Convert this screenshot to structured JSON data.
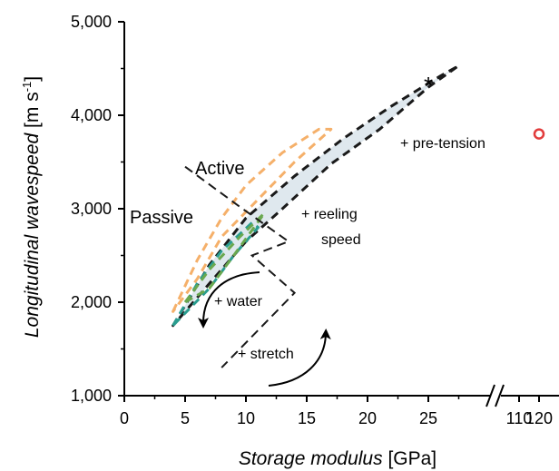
{
  "chart_data": {
    "type": "area",
    "xlabel_italic": "Storage modulus",
    "xlabel_unit": "[GPa]",
    "ylabel_italic": "Longitudinal wavespeed",
    "ylabel_unit": "[m s",
    "ylabel_exp": "-1",
    "ylabel_close": "]",
    "ylim": [
      1000,
      5000
    ],
    "x_ticks": [
      "0",
      "5",
      "10",
      "15",
      "20",
      "25"
    ],
    "x_ticks_break": [
      "110",
      "120"
    ],
    "y_ticks": [
      "1,000",
      "2,000",
      "3,000",
      "4,000",
      "5,000"
    ],
    "regions": [
      {
        "key": "main",
        "color": "#1a1a1a",
        "fill": "#dfe8ee",
        "points": [
          [
            4,
            1750
          ],
          [
            7,
            2400
          ],
          [
            10,
            2900
          ],
          [
            14,
            3350
          ],
          [
            18,
            3750
          ],
          [
            22,
            4100
          ],
          [
            26,
            4420
          ],
          [
            27.5,
            4530
          ],
          [
            25,
            4300
          ],
          [
            21,
            3850
          ],
          [
            17,
            3480
          ],
          [
            13,
            3000
          ],
          [
            10,
            2650
          ],
          [
            7,
            2200
          ],
          [
            4,
            1750
          ]
        ]
      },
      {
        "key": "orange",
        "color": "#f5b06a",
        "fill": "none",
        "points": [
          [
            4,
            1900
          ],
          [
            6,
            2450
          ],
          [
            8,
            2900
          ],
          [
            10,
            3250
          ],
          [
            13,
            3600
          ],
          [
            16,
            3850
          ],
          [
            17,
            3850
          ],
          [
            14,
            3500
          ],
          [
            11,
            3100
          ],
          [
            8,
            2700
          ],
          [
            6,
            2250
          ],
          [
            4,
            1900
          ]
        ]
      },
      {
        "key": "teal",
        "color": "#2a9d8f",
        "fill": "none",
        "points": [
          [
            4,
            1750
          ],
          [
            6,
            2200
          ],
          [
            8,
            2550
          ],
          [
            10.5,
            2850
          ],
          [
            11,
            2800
          ],
          [
            9,
            2500
          ],
          [
            7,
            2150
          ],
          [
            4,
            1750
          ]
        ]
      },
      {
        "key": "green",
        "color": "#6aa84f",
        "fill": "none",
        "points": [
          [
            5,
            2000
          ],
          [
            7,
            2350
          ],
          [
            9.5,
            2700
          ],
          [
            11.5,
            2950
          ],
          [
            9,
            2500
          ],
          [
            7,
            2150
          ],
          [
            5,
            2000
          ]
        ]
      }
    ],
    "divider": {
      "color": "#1a1a1a",
      "points": [
        [
          5,
          3450
        ],
        [
          9.5,
          3020
        ],
        [
          13.5,
          2650
        ],
        [
          10.5,
          2500
        ],
        [
          14,
          2100
        ],
        [
          8,
          1300
        ]
      ]
    },
    "points": [
      {
        "key": "asterisk",
        "x": 25,
        "y": 4350,
        "symbol": "*"
      },
      {
        "key": "red-circle",
        "x": 120,
        "y": 3800,
        "symbol": "circle",
        "color": "#e23c3c"
      }
    ],
    "annotations": {
      "active": "Active",
      "passive": "Passive",
      "pre_tension": "+ pre-tension",
      "reeling": "+ reeling",
      "speed": "speed",
      "water": "+ water",
      "stretch": "+ stretch"
    }
  }
}
